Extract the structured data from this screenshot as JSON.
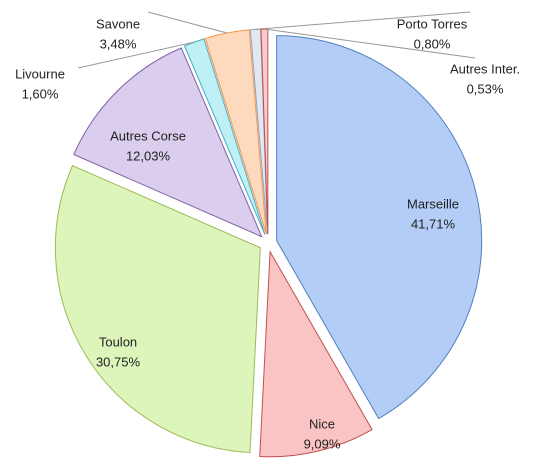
{
  "chart_data": {
    "type": "pie",
    "categories": [
      "Marseille",
      "Nice",
      "Toulon",
      "Autres Corse",
      "Livourne",
      "Savone",
      "Porto Torres",
      "Autres Inter."
    ],
    "values": [
      41.71,
      9.09,
      30.75,
      12.03,
      1.6,
      3.48,
      0.8,
      0.53
    ],
    "value_labels": [
      "41,71%",
      "9,09%",
      "30,75%",
      "12,03%",
      "1,60%",
      "3,48%",
      "0,80%",
      "0,53%"
    ],
    "colors": [
      "#b4cdf7",
      "#fbc4c4",
      "#ddf5bb",
      "#dacdee",
      "#bff0f6",
      "#fdd9bd",
      "#e2e8f2",
      "#f6cccc"
    ],
    "stroke_colors": [
      "#4f81bd",
      "#c0504d",
      "#9bbb59",
      "#8064a2",
      "#4bacc6",
      "#f79646",
      "#8ea0c0",
      "#c0504d"
    ]
  }
}
